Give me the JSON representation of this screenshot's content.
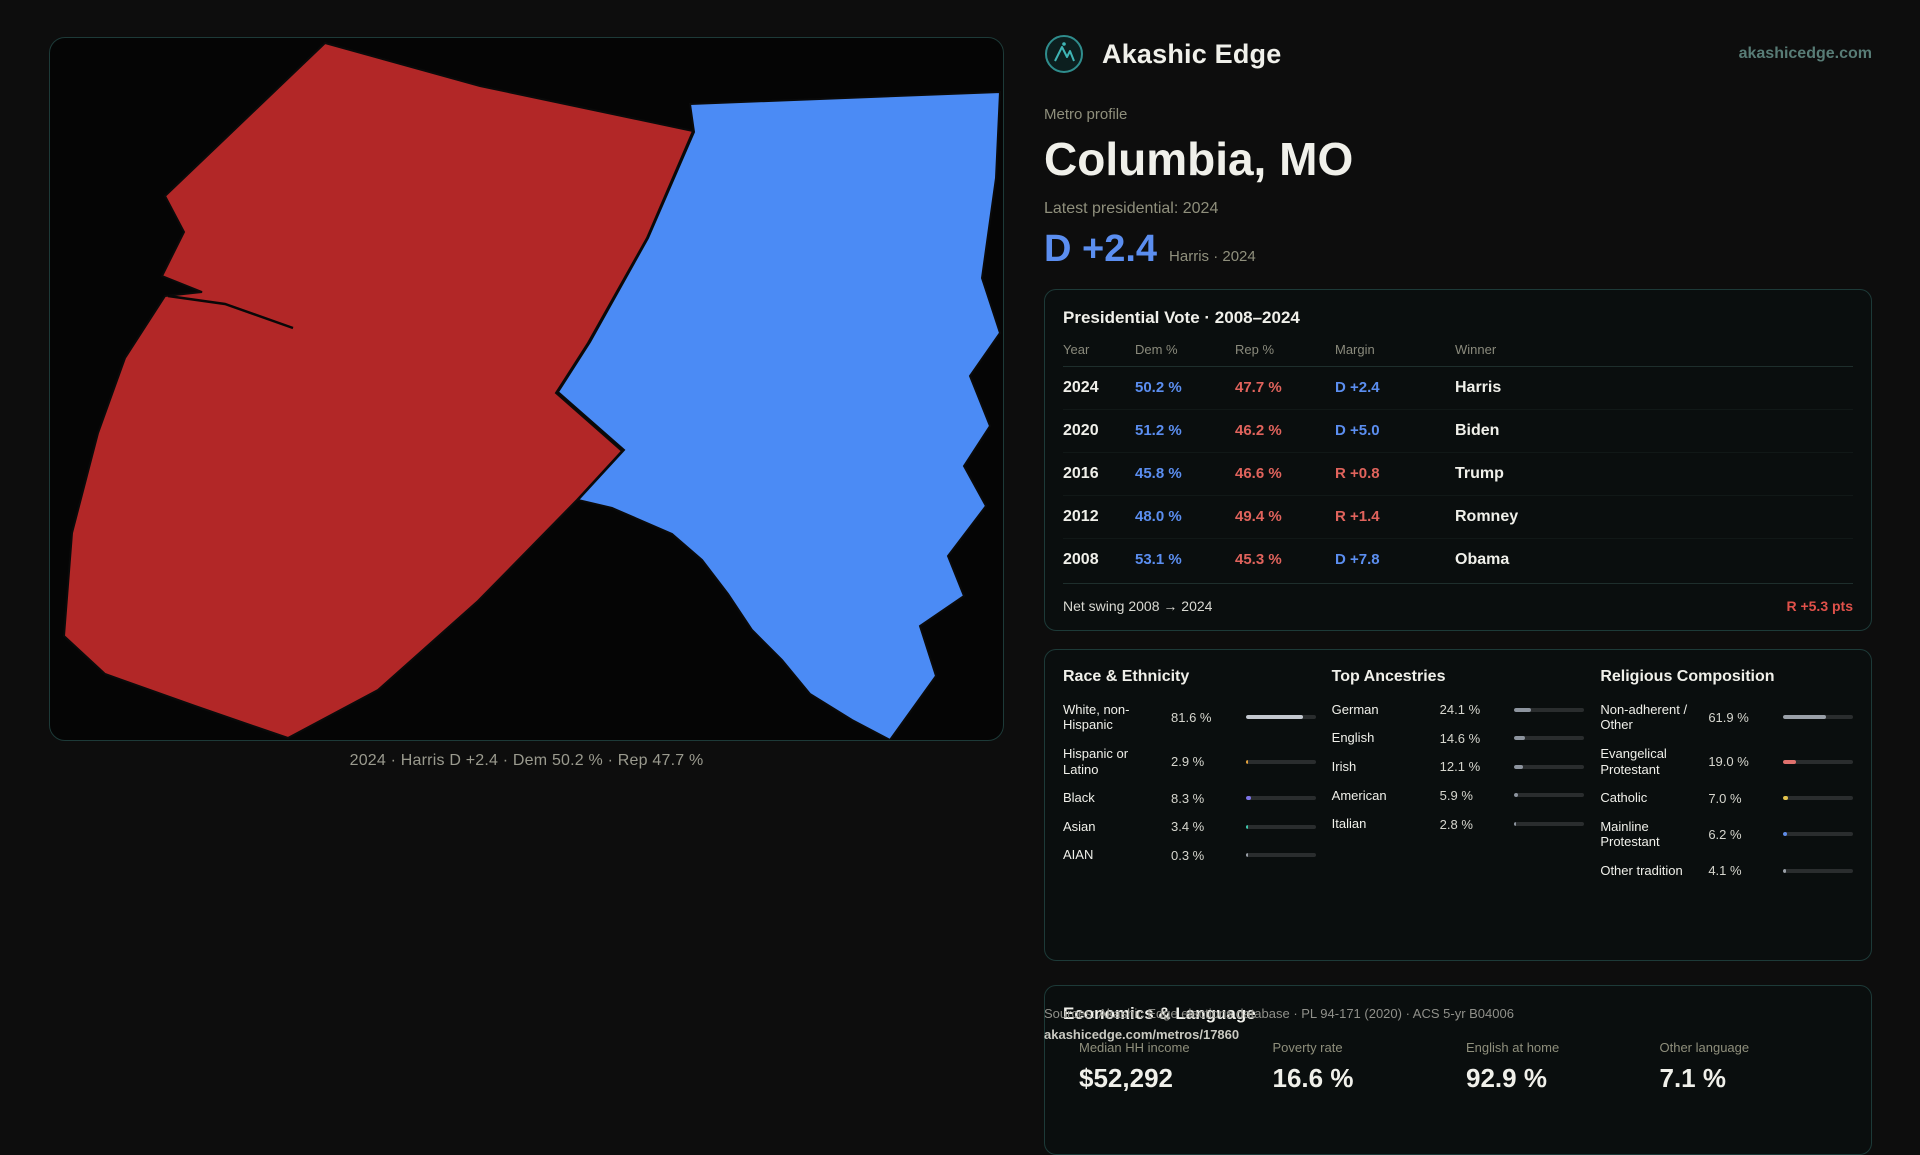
{
  "brand": {
    "name": "Akashic Edge",
    "domain": "akashicedge.com"
  },
  "profile": {
    "kicker": "Metro profile",
    "title": "Columbia, MO",
    "latest_label": "Latest presidential: 2024",
    "headline_margin": "D +2.4",
    "headline_detail": "Harris · 2024"
  },
  "map": {
    "caption": "2024 · Harris D +2.4 · Dem 50.2 % · Rep 47.7 %",
    "dem_color": "#4b8bf5",
    "rep_color": "#b22727"
  },
  "colors": {
    "dem_text": "#5b8ef0",
    "rep_text": "#e0635c",
    "card_border": "#1d3a38"
  },
  "vote_card": {
    "title": "Presidential Vote · 2008–2024",
    "columns": [
      "Year",
      "Dem %",
      "Rep %",
      "Margin",
      "Winner"
    ],
    "rows": [
      {
        "year": "2024",
        "dem": "50.2 %",
        "rep": "47.7 %",
        "margin": "D +2.4",
        "party": "D",
        "winner": "Harris"
      },
      {
        "year": "2020",
        "dem": "51.2 %",
        "rep": "46.2 %",
        "margin": "D +5.0",
        "party": "D",
        "winner": "Biden"
      },
      {
        "year": "2016",
        "dem": "45.8 %",
        "rep": "46.6 %",
        "margin": "R +0.8",
        "party": "R",
        "winner": "Trump"
      },
      {
        "year": "2012",
        "dem": "48.0 %",
        "rep": "49.4 %",
        "margin": "R +1.4",
        "party": "R",
        "winner": "Romney"
      },
      {
        "year": "2008",
        "dem": "53.1 %",
        "rep": "45.3 %",
        "margin": "D +7.8",
        "party": "D",
        "winner": "Obama"
      }
    ],
    "net_swing_label": "Net swing 2008 → 2024",
    "net_swing_value": "R +5.3 pts"
  },
  "demographics": {
    "race": {
      "title": "Race & Ethnicity",
      "rows": [
        {
          "label": "White, non-Hispanic",
          "value": "81.6 %",
          "pct": 81.6,
          "color": "#c3c8cf"
        },
        {
          "label": "Hispanic or Latino",
          "value": "2.9 %",
          "pct": 2.9,
          "color": "#e6a23c"
        },
        {
          "label": "Black",
          "value": "8.3 %",
          "pct": 8.3,
          "color": "#7d74e8"
        },
        {
          "label": "Asian",
          "value": "3.4 %",
          "pct": 3.4,
          "color": "#3fc8ae"
        },
        {
          "label": "AIAN",
          "value": "0.3 %",
          "pct": 0.3,
          "color": "#9aa0a8"
        }
      ]
    },
    "ancestries": {
      "title": "Top Ancestries",
      "rows": [
        {
          "label": "German",
          "value": "24.1 %",
          "pct": 24.1,
          "color": "#8d949e"
        },
        {
          "label": "English",
          "value": "14.6 %",
          "pct": 14.6,
          "color": "#8d949e"
        },
        {
          "label": "Irish",
          "value": "12.1 %",
          "pct": 12.1,
          "color": "#8d949e"
        },
        {
          "label": "American",
          "value": "5.9 %",
          "pct": 5.9,
          "color": "#8d949e"
        },
        {
          "label": "Italian",
          "value": "2.8 %",
          "pct": 2.8,
          "color": "#8d949e"
        }
      ]
    },
    "religion": {
      "title": "Religious Composition",
      "rows": [
        {
          "label": "Non-adherent / Other",
          "value": "61.9 %",
          "pct": 61.9,
          "color": "#9aa0a8"
        },
        {
          "label": "Evangelical Protestant",
          "value": "19.0 %",
          "pct": 19.0,
          "color": "#e0716d"
        },
        {
          "label": "Catholic",
          "value": "7.0 %",
          "pct": 7.0,
          "color": "#e3c34c"
        },
        {
          "label": "Mainline Protestant",
          "value": "6.2 %",
          "pct": 6.2,
          "color": "#5f8ce8"
        },
        {
          "label": "Other tradition",
          "value": "4.1 %",
          "pct": 4.1,
          "color": "#9aa0a8"
        }
      ]
    }
  },
  "economics": {
    "title": "Economics & Language",
    "stats": [
      {
        "label": "Median HH income",
        "value": "$52,292"
      },
      {
        "label": "Poverty rate",
        "value": "16.6 %"
      },
      {
        "label": "English at home",
        "value": "92.9 %"
      },
      {
        "label": "Other language",
        "value": "7.1 %"
      }
    ]
  },
  "footer": {
    "sources": "Sources: Akashic Edge elections database · PL 94-171 (2020) · ACS 5-yr B04006",
    "permalink": "akashicedge.com/metros/17860"
  }
}
